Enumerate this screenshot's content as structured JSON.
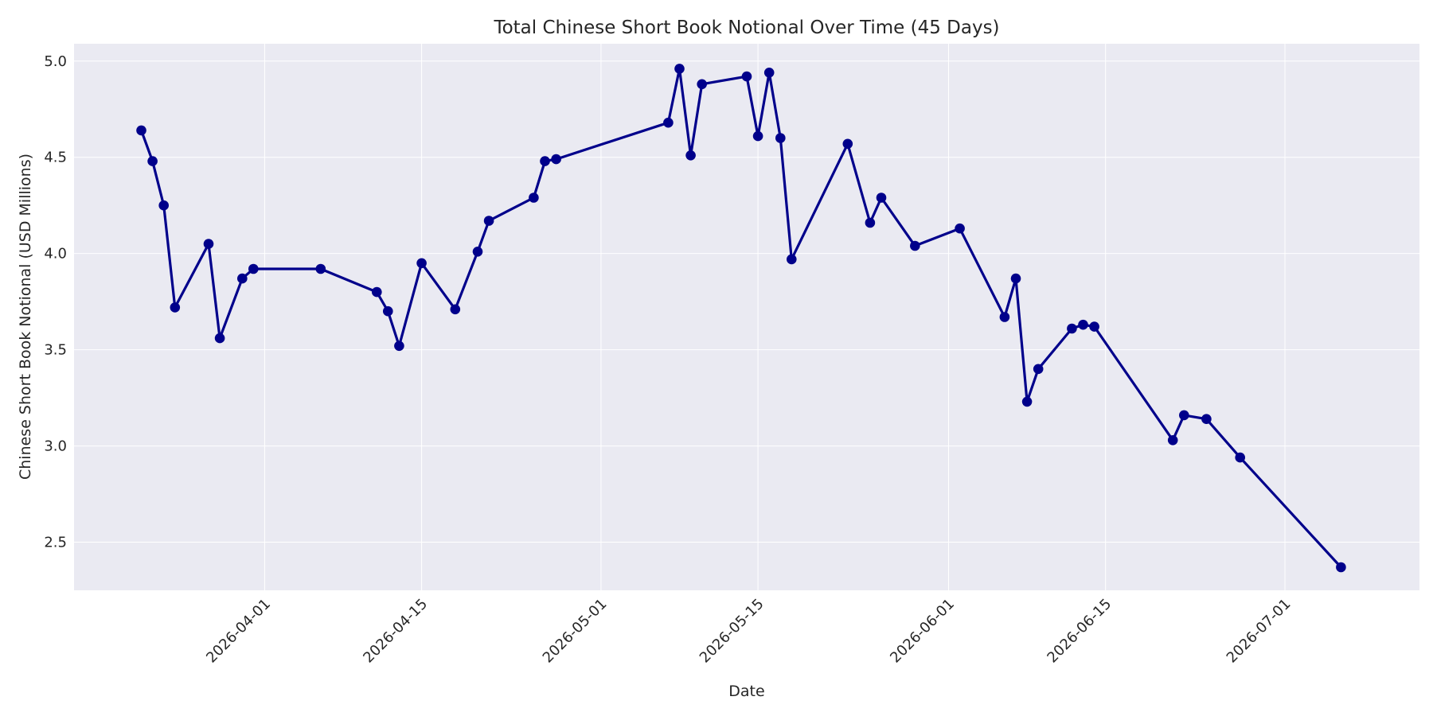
{
  "chart_data": {
    "type": "line",
    "title": "Total Chinese Short Book Notional Over Time (45 Days)",
    "xlabel": "Date",
    "ylabel": "Chinese Short Book Notional (USD Millions)",
    "xlim": [
      "2026-03-15",
      "2026-07-13"
    ],
    "ylim": [
      2.25,
      5.09
    ],
    "x_ticks": [
      "2026-04-01",
      "2026-04-15",
      "2026-05-01",
      "2026-05-15",
      "2026-06-01",
      "2026-06-15",
      "2026-07-01"
    ],
    "y_ticks": [
      2.5,
      3.0,
      3.5,
      4.0,
      4.5,
      5.0
    ],
    "y_tick_labels": [
      "2.5",
      "3.0",
      "3.5",
      "4.0",
      "4.5",
      "5.0"
    ],
    "grid": true,
    "background_color": "#EAEAF2",
    "series_color": "#00008B",
    "series": [
      {
        "x": [
          "2026-03-21",
          "2026-03-22",
          "2026-03-23",
          "2026-03-24",
          "2026-03-27",
          "2026-03-28",
          "2026-03-30",
          "2026-03-31",
          "2026-04-06",
          "2026-04-11",
          "2026-04-12",
          "2026-04-13",
          "2026-04-15",
          "2026-04-18",
          "2026-04-20",
          "2026-04-21",
          "2026-04-25",
          "2026-04-26",
          "2026-04-27",
          "2026-05-07",
          "2026-05-08",
          "2026-05-09",
          "2026-05-10",
          "2026-05-14",
          "2026-05-15",
          "2026-05-16",
          "2026-05-17",
          "2026-05-18",
          "2026-05-23",
          "2026-05-25",
          "2026-05-26",
          "2026-05-29",
          "2026-06-02",
          "2026-06-06",
          "2026-06-07",
          "2026-06-08",
          "2026-06-09",
          "2026-06-12",
          "2026-06-13",
          "2026-06-14",
          "2026-06-21",
          "2026-06-22",
          "2026-06-24",
          "2026-06-27",
          "2026-07-06"
        ],
        "y": [
          4.64,
          4.48,
          4.25,
          3.72,
          4.05,
          3.56,
          3.87,
          3.92,
          3.92,
          3.8,
          3.7,
          3.52,
          3.95,
          3.71,
          4.01,
          4.17,
          4.29,
          4.48,
          4.49,
          4.68,
          4.96,
          4.51,
          4.88,
          4.92,
          4.61,
          4.94,
          4.6,
          3.97,
          4.57,
          4.16,
          4.29,
          4.04,
          4.13,
          3.67,
          3.87,
          3.23,
          3.4,
          3.61,
          3.63,
          3.62,
          3.03,
          3.16,
          3.14,
          2.94,
          2.37
        ]
      }
    ]
  }
}
